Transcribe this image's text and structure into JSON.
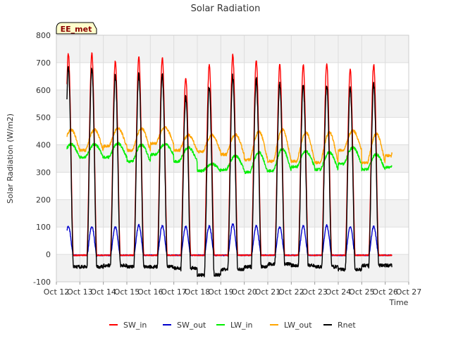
{
  "chart_data": {
    "type": "line",
    "title": "Solar Radiation",
    "xlabel": "Time",
    "ylabel": "Solar Radiation (W/m2)",
    "station_label": "EE_met",
    "ylim": [
      -100,
      800
    ],
    "yticks": [
      -100,
      0,
      100,
      200,
      300,
      400,
      500,
      600,
      700,
      800
    ],
    "xlim": [
      12,
      27
    ],
    "xticks": [
      {
        "x": 12,
        "label": "Oct 12"
      },
      {
        "x": 13,
        "label": "Oct 13"
      },
      {
        "x": 14,
        "label": "Oct 14"
      },
      {
        "x": 15,
        "label": "Oct 15"
      },
      {
        "x": 16,
        "label": "Oct 16"
      },
      {
        "x": 17,
        "label": "Oct 17"
      },
      {
        "x": 18,
        "label": "Oct 18"
      },
      {
        "x": 19,
        "label": "Oct 19"
      },
      {
        "x": 20,
        "label": "Oct 20"
      },
      {
        "x": 21,
        "label": "Oct 21"
      },
      {
        "x": 22,
        "label": "Oct 22"
      },
      {
        "x": 23,
        "label": "Oct 23"
      },
      {
        "x": 24,
        "label": "Oct 24"
      },
      {
        "x": 25,
        "label": "Oct 25"
      },
      {
        "x": 26,
        "label": "Oct 26"
      },
      {
        "x": 27,
        "label": "Oct 27"
      }
    ],
    "grid": true,
    "legend_position": "bottom",
    "series": [
      {
        "name": "SW_in",
        "color": "#ff0000",
        "kind": "pulse",
        "night": -3,
        "peaks": [
          733,
          705,
          722,
          718,
          645,
          693,
          728,
          710,
          693,
          693,
          697,
          675,
          693,
          672
        ]
      },
      {
        "name": "SW_out",
        "color": "#0000cc",
        "kind": "pulse",
        "night": -3,
        "peaks": [
          103,
          100,
          106,
          105,
          102,
          103,
          110,
          104,
          101,
          103,
          106,
          101,
          103,
          100
        ]
      },
      {
        "name": "LW_in",
        "color": "#00ee00",
        "kind": "daily",
        "day": [
          402,
          405,
          400,
          402,
          390,
          330,
          360,
          372,
          385,
          375,
          372,
          390,
          365,
          380
        ],
        "night": [
          355,
          355,
          340,
          365,
          340,
          305,
          310,
          300,
          305,
          320,
          310,
          330,
          310,
          318
        ]
      },
      {
        "name": "LW_out",
        "color": "#ffa500",
        "kind": "daily",
        "day": [
          455,
          460,
          460,
          462,
          435,
          435,
          438,
          448,
          455,
          445,
          445,
          452,
          440,
          445
        ],
        "night": [
          380,
          395,
          380,
          405,
          380,
          375,
          365,
          345,
          340,
          340,
          335,
          380,
          335,
          360
        ]
      },
      {
        "name": "Rnet",
        "color": "#000000",
        "kind": "pulse",
        "peaks": [
          680,
          650,
          660,
          655,
          578,
          610,
          650,
          637,
          620,
          618,
          622,
          608,
          620,
          600
        ],
        "nights": [
          -45,
          -40,
          -45,
          -45,
          -50,
          -75,
          -55,
          -45,
          -35,
          -40,
          -45,
          -55,
          -40,
          -40
        ]
      }
    ]
  }
}
